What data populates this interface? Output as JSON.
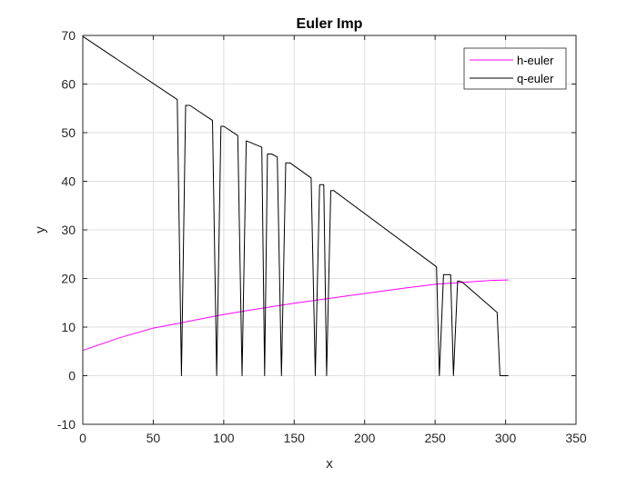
{
  "chart_data": {
    "type": "line",
    "title": "Euler Imp",
    "xlabel": "x",
    "ylabel": "y",
    "xlim": [
      0,
      350
    ],
    "ylim": [
      -10,
      70
    ],
    "xticks": [
      0,
      50,
      100,
      150,
      200,
      250,
      300,
      350
    ],
    "yticks": [
      -10,
      0,
      10,
      20,
      30,
      40,
      50,
      60,
      70
    ],
    "grid": true,
    "legend_location": "top-right",
    "series": [
      {
        "name": "h-euler",
        "color": "#ff00ff",
        "x": [
          0,
          25,
          50,
          70,
          75,
          100,
          125,
          150,
          175,
          200,
          225,
          250,
          270,
          290,
          302
        ],
        "y": [
          5.2,
          7.7,
          9.8,
          10.9,
          11.2,
          12.6,
          13.8,
          14.9,
          15.9,
          16.9,
          17.9,
          18.8,
          19.2,
          19.6,
          19.7
        ]
      },
      {
        "name": "q-euler",
        "color": "#000000",
        "x": [
          0,
          67,
          70,
          73,
          76,
          92,
          95,
          98,
          100,
          110,
          113,
          116,
          118,
          127,
          129,
          131,
          134,
          138,
          141,
          144,
          147,
          162,
          165,
          168,
          171,
          173,
          176,
          178,
          251,
          253,
          256,
          259,
          261,
          263,
          266,
          269,
          294,
          296,
          302
        ],
        "y": [
          69.8,
          56.8,
          0,
          55.6,
          55.6,
          52.5,
          0,
          51.3,
          51.3,
          49.4,
          0,
          48.3,
          48.1,
          47.0,
          0,
          45.6,
          45.6,
          45.0,
          0,
          43.8,
          43.8,
          40.7,
          0,
          39.3,
          39.3,
          0,
          38.1,
          38.1,
          22.4,
          0,
          20.8,
          20.8,
          20.8,
          0,
          19.5,
          19.3,
          13.0,
          0,
          0
        ]
      }
    ]
  }
}
